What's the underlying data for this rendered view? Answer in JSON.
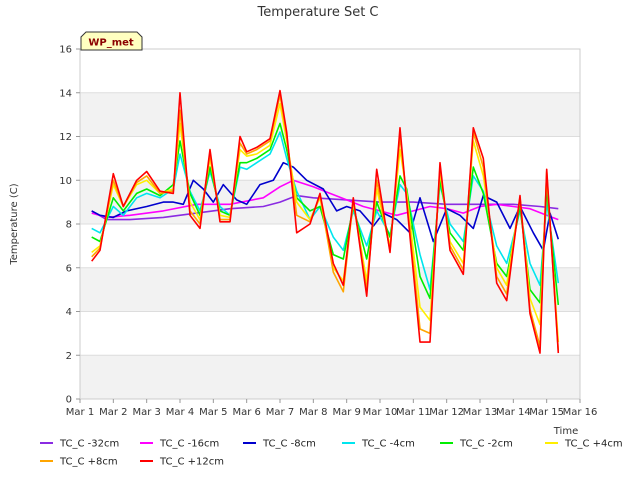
{
  "chart_data": {
    "type": "line",
    "title": "Temperature Set C",
    "xlabel": "Time",
    "ylabel": "Temperature (C)",
    "badge": "WP_met",
    "xlim": [
      1,
      16
    ],
    "ylim": [
      0,
      16
    ],
    "x_ticks": [
      {
        "v": 1,
        "label": "Mar 1"
      },
      {
        "v": 2,
        "label": "Mar 2"
      },
      {
        "v": 3,
        "label": "Mar 3"
      },
      {
        "v": 4,
        "label": "Mar 4"
      },
      {
        "v": 5,
        "label": "Mar 5"
      },
      {
        "v": 6,
        "label": "Mar 6"
      },
      {
        "v": 7,
        "label": "Mar 7"
      },
      {
        "v": 8,
        "label": "Mar 8"
      },
      {
        "v": 9,
        "label": "Mar 9"
      },
      {
        "v": 10,
        "label": "Mar 10"
      },
      {
        "v": 11,
        "label": "Mar 11"
      },
      {
        "v": 12,
        "label": "Mar 12"
      },
      {
        "v": 13,
        "label": "Mar 13"
      },
      {
        "v": 14,
        "label": "Mar 14"
      },
      {
        "v": 15,
        "label": "Mar 15"
      },
      {
        "v": 16,
        "label": "Mar 16"
      }
    ],
    "y_ticks": [
      0,
      2,
      4,
      6,
      8,
      10,
      12,
      14,
      16
    ],
    "grid": true,
    "legend_position": "bottom",
    "series": [
      {
        "name": "TC_C -32cm",
        "color": "#8a2be2",
        "x": [
          1.35,
          1.8,
          2.5,
          3.5,
          4.5,
          5.5,
          6.5,
          7.0,
          7.5,
          8.0,
          9.0,
          10.0,
          11.0,
          12.0,
          13.0,
          14.0,
          14.8,
          15.35
        ],
        "y": [
          8.6,
          8.2,
          8.2,
          8.3,
          8.5,
          8.7,
          8.8,
          9.0,
          9.3,
          9.2,
          9.1,
          9.0,
          9.0,
          8.9,
          8.9,
          8.9,
          8.8,
          8.7
        ]
      },
      {
        "name": "TC_C -16cm",
        "color": "#ff00ff",
        "x": [
          1.35,
          1.8,
          2.5,
          3.5,
          4.5,
          5.5,
          6.5,
          7.0,
          7.4,
          8.0,
          8.5,
          9.0,
          9.5,
          10.0,
          10.5,
          11.0,
          11.5,
          12.0,
          12.5,
          13.0,
          13.5,
          14.0,
          14.5,
          15.0,
          15.35
        ],
        "y": [
          8.5,
          8.3,
          8.4,
          8.6,
          8.9,
          8.9,
          9.2,
          9.7,
          10.0,
          9.7,
          9.4,
          9.1,
          8.8,
          8.6,
          8.4,
          8.6,
          8.8,
          8.7,
          8.5,
          8.8,
          8.9,
          8.8,
          8.7,
          8.4,
          8.2
        ]
      },
      {
        "name": "TC_C -8cm",
        "color": "#0000cd",
        "x": [
          1.35,
          1.6,
          2.0,
          2.4,
          3.0,
          3.5,
          3.8,
          4.1,
          4.4,
          4.7,
          5.0,
          5.3,
          5.7,
          6.0,
          6.4,
          6.8,
          7.1,
          7.4,
          7.8,
          8.3,
          8.7,
          9.0,
          9.4,
          9.8,
          10.1,
          10.5,
          10.9,
          11.2,
          11.6,
          12.0,
          12.4,
          12.8,
          13.1,
          13.5,
          13.9,
          14.2,
          14.6,
          14.9,
          15.1,
          15.35
        ],
        "y": [
          8.6,
          8.4,
          8.3,
          8.6,
          8.8,
          9.0,
          9.0,
          8.9,
          10.0,
          9.6,
          9.0,
          9.8,
          9.1,
          8.9,
          9.8,
          10.0,
          10.8,
          10.6,
          10.0,
          9.6,
          8.6,
          8.8,
          8.6,
          7.9,
          8.5,
          8.2,
          7.6,
          9.2,
          7.2,
          8.7,
          8.4,
          7.8,
          9.3,
          9.0,
          7.8,
          8.8,
          7.6,
          6.8,
          8.5,
          7.3
        ]
      },
      {
        "name": "TC_C -4cm",
        "color": "#00e5ee",
        "x": [
          1.35,
          1.6,
          2.0,
          2.3,
          2.7,
          3.0,
          3.4,
          3.8,
          4.0,
          4.3,
          4.6,
          4.9,
          5.2,
          5.5,
          5.8,
          6.0,
          6.3,
          6.7,
          7.0,
          7.2,
          7.5,
          7.9,
          8.2,
          8.6,
          8.9,
          9.2,
          9.6,
          9.9,
          10.3,
          10.6,
          10.8,
          11.2,
          11.5,
          11.8,
          12.1,
          12.5,
          12.8,
          13.1,
          13.5,
          13.8,
          14.2,
          14.5,
          14.8,
          15.0,
          15.35
        ],
        "y": [
          7.8,
          7.6,
          8.8,
          8.4,
          9.2,
          9.4,
          9.2,
          9.6,
          11.2,
          9.5,
          8.6,
          10.4,
          8.8,
          8.4,
          10.6,
          10.5,
          10.8,
          11.2,
          12.2,
          11.0,
          9.5,
          8.2,
          8.8,
          7.4,
          6.8,
          8.6,
          7.0,
          8.6,
          7.5,
          9.8,
          9.4,
          6.6,
          5.0,
          9.8,
          8.0,
          7.2,
          10.2,
          9.5,
          7.0,
          6.2,
          8.6,
          6.2,
          5.2,
          9.0,
          5.3
        ]
      },
      {
        "name": "TC_C -2cm",
        "color": "#00ee00",
        "x": [
          1.35,
          1.6,
          2.0,
          2.3,
          2.7,
          3.0,
          3.4,
          3.8,
          4.0,
          4.3,
          4.6,
          4.9,
          5.2,
          5.5,
          5.8,
          6.0,
          6.3,
          6.7,
          7.0,
          7.2,
          7.5,
          7.9,
          8.2,
          8.6,
          8.9,
          9.2,
          9.6,
          9.9,
          10.3,
          10.6,
          10.8,
          11.2,
          11.5,
          11.8,
          12.1,
          12.5,
          12.8,
          13.1,
          13.5,
          13.8,
          14.2,
          14.5,
          14.8,
          15.0,
          15.35
        ],
        "y": [
          7.4,
          7.2,
          9.2,
          8.6,
          9.4,
          9.6,
          9.3,
          9.8,
          11.8,
          9.4,
          8.4,
          10.6,
          8.6,
          8.4,
          10.8,
          10.8,
          11.0,
          11.4,
          12.6,
          11.4,
          9.2,
          8.6,
          8.8,
          6.6,
          6.4,
          8.8,
          6.4,
          9.0,
          7.4,
          10.2,
          9.6,
          5.6,
          4.6,
          10.0,
          7.6,
          6.8,
          10.6,
          9.4,
          6.2,
          5.6,
          8.8,
          5.0,
          4.4,
          9.5,
          4.3
        ]
      },
      {
        "name": "TC_C +4cm",
        "color": "#ffee00",
        "x": [
          1.35,
          1.6,
          2.0,
          2.3,
          2.7,
          3.0,
          3.4,
          3.8,
          4.0,
          4.3,
          4.6,
          4.9,
          5.2,
          5.5,
          5.8,
          6.0,
          6.3,
          6.7,
          7.0,
          7.2,
          7.5,
          7.9,
          8.2,
          8.6,
          8.9,
          9.2,
          9.6,
          9.9,
          10.3,
          10.6,
          10.8,
          11.2,
          11.5,
          11.8,
          12.1,
          12.5,
          12.8,
          13.1,
          13.5,
          13.8,
          14.2,
          14.5,
          14.8,
          15.0,
          15.35
        ],
        "y": [
          6.7,
          7.0,
          9.8,
          8.8,
          9.8,
          10.0,
          9.4,
          9.6,
          12.6,
          9.0,
          8.2,
          11.0,
          8.4,
          8.3,
          11.4,
          11.1,
          11.2,
          11.6,
          13.5,
          11.8,
          9.0,
          8.2,
          9.2,
          6.0,
          5.4,
          9.0,
          5.4,
          9.6,
          7.0,
          11.4,
          9.4,
          4.2,
          3.6,
          10.4,
          7.2,
          6.2,
          11.8,
          10.2,
          6.0,
          5.2,
          9.2,
          4.6,
          3.4,
          10.2,
          2.6
        ]
      },
      {
        "name": "TC_C +8cm",
        "color": "#ffa500",
        "x": [
          1.35,
          1.6,
          2.0,
          2.3,
          2.7,
          3.0,
          3.4,
          3.8,
          4.0,
          4.3,
          4.6,
          4.9,
          5.2,
          5.5,
          5.8,
          6.0,
          6.3,
          6.7,
          7.0,
          7.2,
          7.5,
          7.9,
          8.2,
          8.6,
          8.9,
          9.2,
          9.6,
          9.9,
          10.3,
          10.6,
          10.8,
          11.2,
          11.5,
          11.8,
          12.1,
          12.5,
          12.8,
          13.1,
          13.5,
          13.8,
          14.2,
          14.5,
          14.8,
          15.0,
          15.35
        ],
        "y": [
          6.5,
          6.9,
          10.0,
          8.8,
          9.9,
          10.2,
          9.4,
          9.5,
          13.2,
          8.6,
          8.0,
          11.2,
          8.2,
          8.2,
          11.7,
          11.2,
          11.4,
          11.8,
          13.9,
          12.0,
          8.4,
          8.1,
          9.3,
          5.8,
          4.9,
          9.1,
          5.0,
          10.0,
          6.8,
          12.0,
          9.2,
          3.2,
          3.0,
          10.6,
          7.0,
          5.9,
          12.2,
          10.6,
          5.6,
          4.8,
          9.2,
          4.1,
          2.4,
          10.4,
          2.2
        ]
      },
      {
        "name": "TC_C +12cm",
        "color": "#ff0000",
        "x": [
          1.35,
          1.6,
          2.0,
          2.3,
          2.7,
          3.0,
          3.4,
          3.8,
          4.0,
          4.3,
          4.6,
          4.9,
          5.2,
          5.5,
          5.8,
          6.0,
          6.3,
          6.7,
          7.0,
          7.2,
          7.5,
          7.9,
          8.2,
          8.6,
          8.9,
          9.2,
          9.6,
          9.9,
          10.3,
          10.6,
          10.8,
          11.2,
          11.5,
          11.8,
          12.1,
          12.5,
          12.8,
          13.1,
          13.5,
          13.8,
          14.2,
          14.5,
          14.8,
          15.0,
          15.35
        ],
        "y": [
          6.3,
          6.8,
          10.3,
          8.8,
          10.0,
          10.4,
          9.5,
          9.4,
          14.0,
          8.4,
          7.8,
          11.4,
          8.1,
          8.1,
          12.0,
          11.3,
          11.5,
          11.9,
          14.1,
          12.2,
          7.6,
          8.0,
          9.4,
          6.2,
          5.2,
          9.2,
          4.7,
          10.5,
          6.7,
          12.4,
          9.0,
          2.6,
          2.6,
          10.8,
          6.8,
          5.7,
          12.4,
          11.0,
          5.3,
          4.5,
          9.3,
          3.9,
          2.1,
          10.5,
          2.1
        ]
      }
    ]
  }
}
